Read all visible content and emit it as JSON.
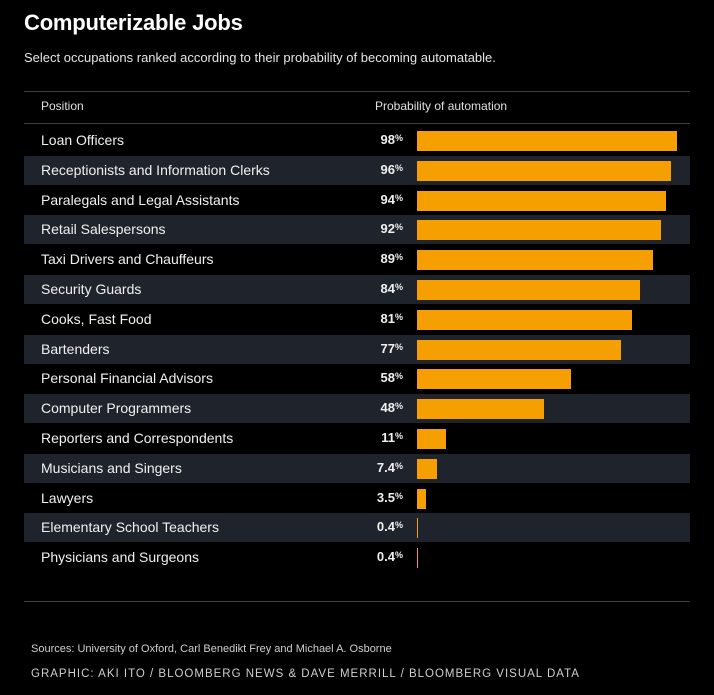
{
  "header": {
    "title": "Computerizable Jobs",
    "subtitle": "Select occupations ranked according to their probability of becoming automatable."
  },
  "table": {
    "col_position": "Position",
    "col_probability": "Probability of automation"
  },
  "footer": {
    "sources": "Sources: University of Oxford, Carl Benedikt Frey and Michael A. Osborne",
    "credit": "GRAPHIC: AKI ITO / BLOOMBERG NEWS & DAVE MERRILL / BLOOMBERG VISUAL DATA"
  },
  "colors": {
    "bar": "#f5a000",
    "background": "#000000",
    "stripe": "#1f242c"
  },
  "chart_data": {
    "type": "bar",
    "orientation": "horizontal",
    "title": "Computerizable Jobs",
    "subtitle": "Select occupations ranked according to their probability of becoming automatable.",
    "xlabel": "Probability of automation",
    "ylabel": "Position",
    "xlim": [
      0,
      100
    ],
    "unit": "%",
    "grid": false,
    "categories": [
      "Loan Officers",
      "Receptionists and Information Clerks",
      "Paralegals and Legal Assistants",
      "Retail Salespersons",
      "Taxi Drivers and Chauffeurs",
      "Security Guards",
      "Cooks, Fast Food",
      "Bartenders",
      "Personal Financial Advisors",
      "Computer Programmers",
      "Reporters and Correspondents",
      "Musicians and Singers",
      "Lawyers",
      "Elementary School Teachers",
      "Physicians and Surgeons"
    ],
    "values": [
      98,
      96,
      94,
      92,
      89,
      84,
      81,
      77,
      58,
      48,
      11,
      7.4,
      3.5,
      0.4,
      0.4
    ],
    "labels": [
      "98",
      "96",
      "94",
      "92",
      "89",
      "84",
      "81",
      "77",
      "58",
      "48",
      "11",
      "7.4",
      "3.5",
      "0.4",
      "0.4"
    ]
  }
}
